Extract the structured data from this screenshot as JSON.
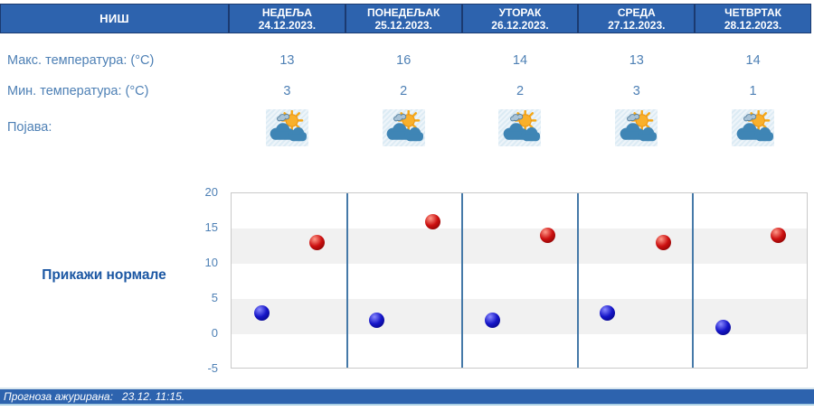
{
  "location": "НИШ",
  "days": [
    {
      "name": "НЕДЕЉА",
      "date": "24.12.2023.",
      "max": 13,
      "min": 3
    },
    {
      "name": "ПОНЕДЕЉАК",
      "date": "25.12.2023.",
      "max": 16,
      "min": 2
    },
    {
      "name": "УТОРАК",
      "date": "26.12.2023.",
      "max": 14,
      "min": 2
    },
    {
      "name": "СРЕДА",
      "date": "27.12.2023.",
      "max": 13,
      "min": 3
    },
    {
      "name": "ЧЕТВРТАК",
      "date": "28.12.2023.",
      "max": 14,
      "min": 1
    }
  ],
  "rows": {
    "max_label": "Макс. температура: (°C)",
    "min_label": "Мин. температура: (°C)",
    "phenomenon_label": "Појава:"
  },
  "weather_icon": "sun-behind-clouds-icon",
  "normals_button_label": "Прикажи нормале",
  "footer_text": "Прогноза ажурирана:   23.12. 11:15.",
  "chart_data": {
    "type": "scatter",
    "categories": [
      "НЕДЕЉА 24.12.2023.",
      "ПОНЕДЕЉАК 25.12.2023.",
      "УТОРАК 26.12.2023.",
      "СРЕДА 27.12.2023.",
      "ЧЕТВРТАК 28.12.2023."
    ],
    "series": [
      {
        "name": "Макс. температура (°C)",
        "values": [
          13,
          16,
          14,
          13,
          14
        ],
        "color": "#cc1010",
        "highlight": "#ff9a8a",
        "shadow": "#6d0000"
      },
      {
        "name": "Мин. температура (°C)",
        "values": [
          3,
          2,
          2,
          3,
          1
        ],
        "color": "#1515c8",
        "highlight": "#8a8aff",
        "shadow": "#00006d"
      }
    ],
    "ylim": [
      -5,
      20
    ],
    "yticks": [
      20,
      15,
      10,
      5,
      0,
      -5
    ],
    "title": "",
    "xlabel": "",
    "ylabel": "",
    "legend": "none",
    "grid": "gray horizontal bands for 0–5 and 10–15, blue vertical day separators"
  },
  "colors": {
    "header_bg": "#2d63ae",
    "header_border": "#1b3a70",
    "body_text_blue": "#4e80b5",
    "normals_link_blue": "#1b57a3",
    "day_separator_blue": "#4579a8",
    "band_gray": "#f1f1f1",
    "icon_tile_bg": "#e4eef6",
    "max_point_red": "#cc1010",
    "min_point_blue": "#1515c8"
  }
}
